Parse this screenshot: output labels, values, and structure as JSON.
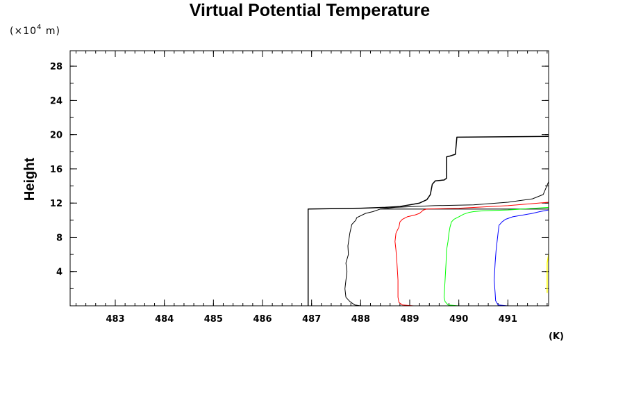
{
  "chart_data": {
    "type": "line",
    "title": "Virtual Potential Temperature",
    "ylabel": "Height",
    "y_unit": {
      "prefix": "(×10",
      "exponent": "4",
      "suffix": " m)"
    },
    "x_unit": "(K)",
    "xlim": [
      482.08,
      491.83
    ],
    "ylim": [
      0,
      29.8
    ],
    "xticks": [
      {
        "value": 483,
        "label": "483"
      },
      {
        "value": 484,
        "label": "484"
      },
      {
        "value": 485,
        "label": "485"
      },
      {
        "value": 486,
        "label": "486"
      },
      {
        "value": 487,
        "label": "487"
      },
      {
        "value": 488,
        "label": "488"
      },
      {
        "value": 489,
        "label": "489"
      },
      {
        "value": 490,
        "label": "490"
      },
      {
        "value": 491,
        "label": "491"
      }
    ],
    "yticks": [
      {
        "value": 4,
        "label": "4"
      },
      {
        "value": 8,
        "label": "8"
      },
      {
        "value": 12,
        "label": "12"
      },
      {
        "value": 16,
        "label": "16"
      },
      {
        "value": 20,
        "label": "20"
      },
      {
        "value": 24,
        "label": "24"
      },
      {
        "value": 28,
        "label": "28"
      }
    ],
    "x_minor_step": 0.2,
    "y_minor_step": 2,
    "series": [
      {
        "color": "#000000",
        "width": 1.5,
        "points": [
          [
            486.93,
            0
          ],
          [
            486.93,
            11.3
          ],
          [
            488.0,
            11.4
          ],
          [
            488.5,
            11.5
          ],
          [
            488.8,
            11.6
          ],
          [
            489.0,
            11.8
          ],
          [
            489.2,
            12.0
          ],
          [
            489.35,
            12.4
          ],
          [
            489.42,
            13.0
          ],
          [
            489.46,
            14.2
          ],
          [
            489.52,
            14.6
          ],
          [
            489.7,
            14.7
          ],
          [
            489.75,
            14.9
          ],
          [
            489.75,
            17.4
          ],
          [
            489.82,
            17.5
          ],
          [
            489.93,
            17.7
          ],
          [
            489.96,
            19.7
          ],
          [
            491.83,
            19.8
          ]
        ]
      },
      {
        "color": "#000000",
        "width": 1.2,
        "points": [
          [
            488.4,
            11.3
          ],
          [
            491.83,
            11.3
          ]
        ]
      },
      {
        "color": "#000000",
        "width": 1,
        "points": [
          [
            488.0,
            0
          ],
          [
            487.88,
            0.1
          ],
          [
            487.78,
            0.5
          ],
          [
            487.7,
            1.0
          ],
          [
            487.68,
            2.0
          ],
          [
            487.72,
            4.0
          ],
          [
            487.7,
            5.0
          ],
          [
            487.75,
            6.0
          ],
          [
            487.74,
            7.0
          ],
          [
            487.78,
            8.5
          ],
          [
            487.82,
            9.5
          ],
          [
            487.9,
            10.0
          ],
          [
            487.92,
            10.3
          ],
          [
            488.1,
            10.8
          ],
          [
            488.25,
            11.0
          ],
          [
            488.4,
            11.3
          ],
          [
            488.7,
            11.5
          ],
          [
            489.5,
            11.7
          ],
          [
            490.3,
            11.8
          ],
          [
            491.0,
            12.1
          ],
          [
            491.5,
            12.5
          ],
          [
            491.72,
            13.0
          ],
          [
            491.83,
            14.5
          ]
        ]
      },
      {
        "color": "#ff0000",
        "width": 1,
        "points": [
          [
            489.08,
            0
          ],
          [
            488.85,
            0.1
          ],
          [
            488.78,
            0.4
          ],
          [
            488.76,
            1.0
          ],
          [
            488.76,
            3.0
          ],
          [
            488.74,
            5.0
          ],
          [
            488.72,
            6.5
          ],
          [
            488.7,
            7.5
          ],
          [
            488.72,
            8.5
          ],
          [
            488.78,
            9.2
          ],
          [
            488.8,
            9.8
          ],
          [
            488.85,
            10.1
          ],
          [
            488.95,
            10.4
          ],
          [
            489.1,
            10.6
          ],
          [
            489.2,
            10.8
          ],
          [
            489.28,
            11.2
          ],
          [
            489.35,
            11.3
          ],
          [
            490.0,
            11.4
          ],
          [
            491.0,
            11.7
          ],
          [
            491.83,
            12.1
          ]
        ]
      },
      {
        "color": "#00ff00",
        "width": 1,
        "points": [
          [
            490.0,
            0
          ],
          [
            489.78,
            0.1
          ],
          [
            489.72,
            0.5
          ],
          [
            489.7,
            1.0
          ],
          [
            489.72,
            3.0
          ],
          [
            489.74,
            5.0
          ],
          [
            489.75,
            6.5
          ],
          [
            489.78,
            7.5
          ],
          [
            489.8,
            8.5
          ],
          [
            489.82,
            9.2
          ],
          [
            489.85,
            9.8
          ],
          [
            489.9,
            10.1
          ],
          [
            490.0,
            10.4
          ],
          [
            490.1,
            10.7
          ],
          [
            490.2,
            10.9
          ],
          [
            490.3,
            11.0
          ],
          [
            490.5,
            11.1
          ],
          [
            491.0,
            11.2
          ],
          [
            491.83,
            11.5
          ]
        ]
      },
      {
        "color": "#0000ff",
        "width": 1,
        "points": [
          [
            491.0,
            0
          ],
          [
            490.8,
            0.1
          ],
          [
            490.75,
            0.6
          ],
          [
            490.74,
            1.5
          ],
          [
            490.72,
            3.0
          ],
          [
            490.74,
            5.0
          ],
          [
            490.76,
            6.5
          ],
          [
            490.78,
            7.5
          ],
          [
            490.8,
            8.5
          ],
          [
            490.82,
            9.4
          ],
          [
            490.88,
            9.8
          ],
          [
            490.95,
            10.1
          ],
          [
            491.1,
            10.4
          ],
          [
            491.3,
            10.6
          ],
          [
            491.5,
            10.8
          ],
          [
            491.65,
            11.0
          ],
          [
            491.83,
            11.2
          ]
        ]
      },
      {
        "color": "#ffff00",
        "width": 1.5,
        "points": [
          [
            491.8,
            1.5
          ],
          [
            491.8,
            5.0
          ],
          [
            491.83,
            6.0
          ]
        ]
      }
    ]
  }
}
